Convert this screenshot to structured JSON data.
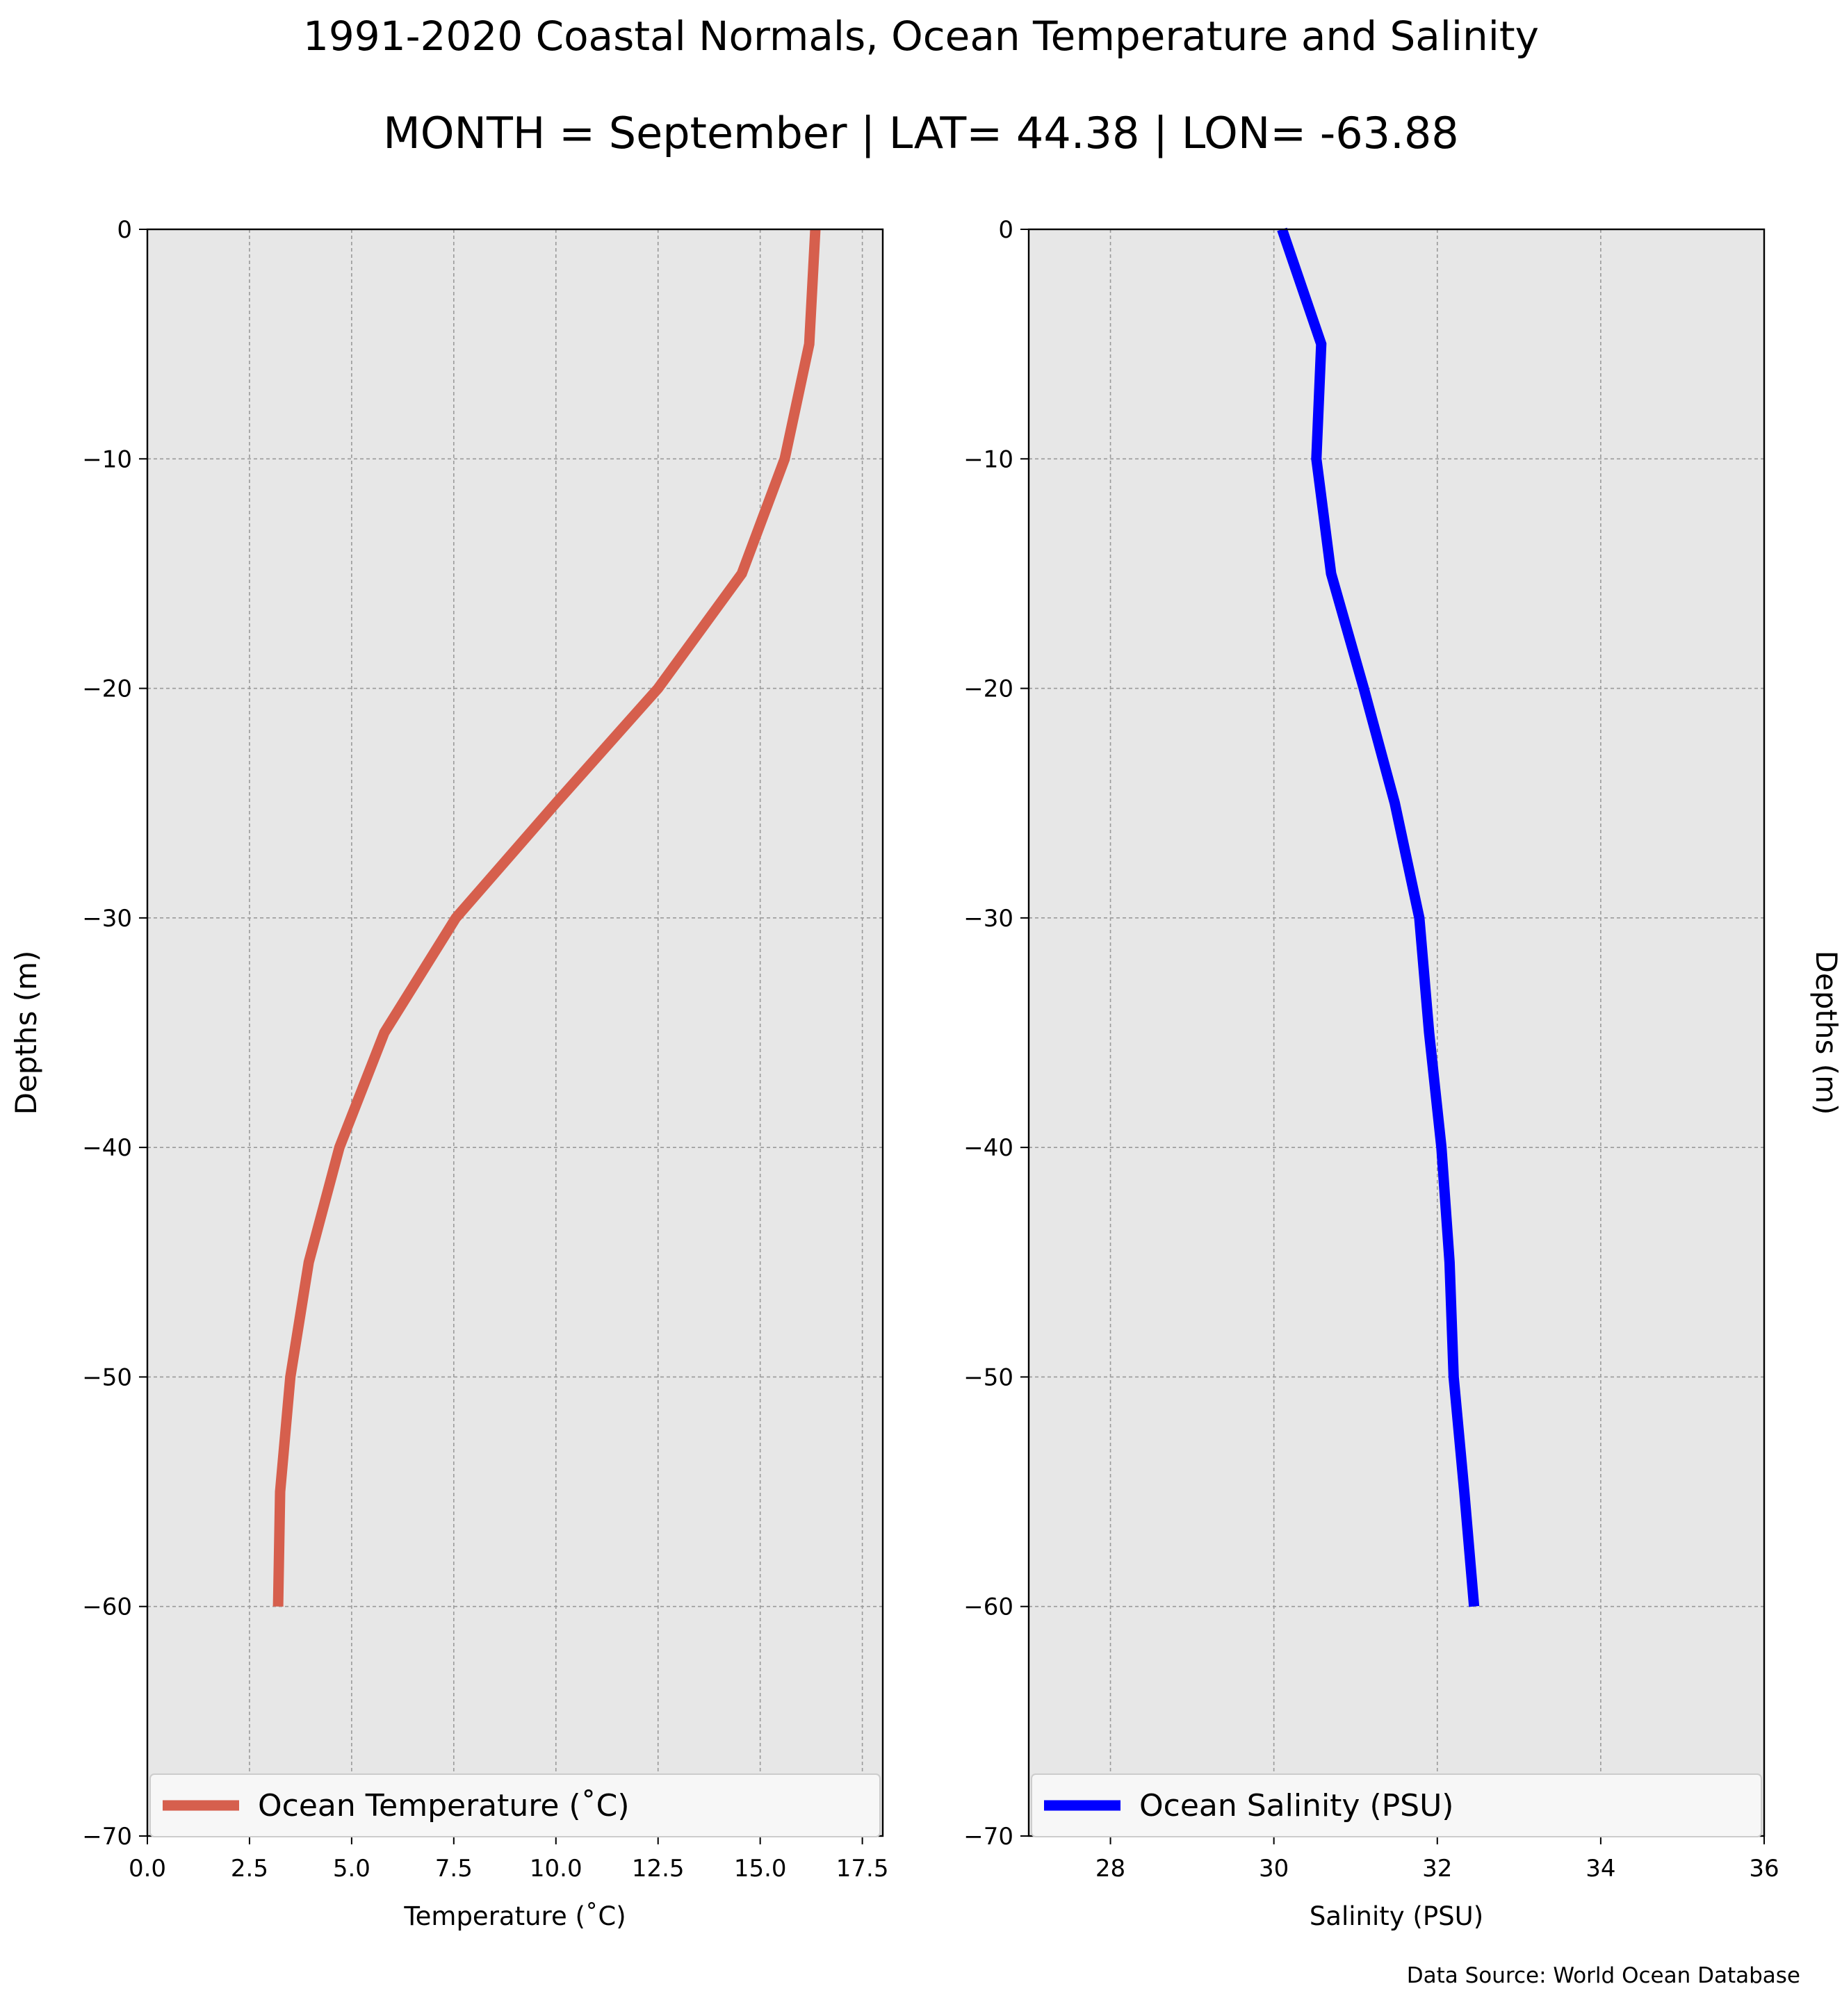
{
  "title": "1991-2020 Coastal Normals, Ocean Temperature and Salinity",
  "subtitle": "MONTH = September | LAT= 44.38 | LON= -63.88",
  "source": "Data Source: World Ocean Database",
  "chart_data": [
    {
      "type": "line",
      "xlabel": "Temperature (˚C)",
      "ylabel": "Depths (m)",
      "ylabel_side": "left",
      "xlim": [
        0,
        18
      ],
      "ylim": [
        -70,
        0
      ],
      "xticks": [
        0.0,
        2.5,
        5.0,
        7.5,
        10.0,
        12.5,
        15.0,
        17.5
      ],
      "xtick_labels": [
        "0.0",
        "2.5",
        "5.0",
        "7.5",
        "10.0",
        "12.5",
        "15.0",
        "17.5"
      ],
      "yticks": [
        0,
        -10,
        -20,
        -30,
        -40,
        -50,
        -60,
        -70
      ],
      "ytick_labels": [
        "0",
        "−10",
        "−20",
        "−30",
        "−40",
        "−50",
        "−60",
        "−70"
      ],
      "grid": true,
      "legend": "bottom",
      "series": [
        {
          "name": "Ocean Temperature (˚C)",
          "color": "#d65f4d",
          "x": [
            16.35,
            16.2,
            15.6,
            14.55,
            12.5,
            10.0,
            7.55,
            5.8,
            4.7,
            3.95,
            3.5,
            3.25,
            3.2
          ],
          "y": [
            0,
            -5,
            -10,
            -15,
            -20,
            -25,
            -30,
            -35,
            -40,
            -45,
            -50,
            -55,
            -60
          ]
        }
      ]
    },
    {
      "type": "line",
      "xlabel": "Salinity (PSU)",
      "ylabel": "Depths (m)",
      "ylabel_side": "right",
      "xlim": [
        27,
        36
      ],
      "ylim": [
        -70,
        0
      ],
      "xticks": [
        28,
        30,
        32,
        34,
        36
      ],
      "xtick_labels": [
        "28",
        "30",
        "32",
        "34",
        "36"
      ],
      "yticks": [
        0,
        -10,
        -20,
        -30,
        -40,
        -50,
        -60,
        -70
      ],
      "ytick_labels": [
        "0",
        "−10",
        "−20",
        "−30",
        "−40",
        "−50",
        "−60",
        "−70"
      ],
      "grid": true,
      "legend": "bottom",
      "series": [
        {
          "name": "Ocean Salinity (PSU)",
          "color": "#0000ff",
          "x": [
            30.1,
            30.58,
            30.52,
            30.7,
            31.1,
            31.48,
            31.78,
            31.9,
            32.05,
            32.15,
            32.2,
            32.33,
            32.45
          ],
          "y": [
            0,
            -5,
            -10,
            -15,
            -20,
            -25,
            -30,
            -35,
            -40,
            -45,
            -50,
            -55,
            -60
          ]
        }
      ]
    }
  ]
}
